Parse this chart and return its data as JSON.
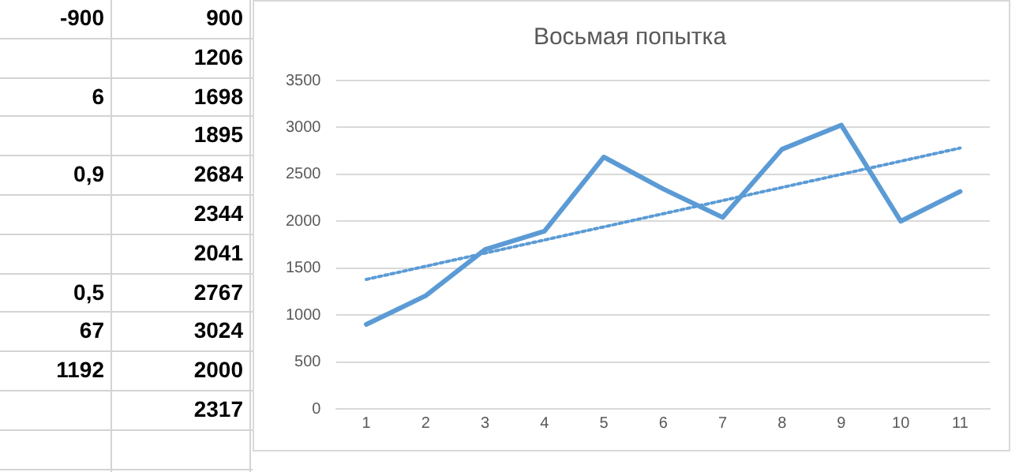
{
  "chart_data": [
    {
      "type": "other",
      "annotations": [
        "-900",
        "900",
        "1206",
        "6",
        "1698",
        "1895",
        "0,9",
        "2684",
        "2344",
        "2041",
        "0,5",
        "2767",
        "67",
        "3024",
        "1192",
        "2000",
        "2317"
      ]
    },
    {
      "type": "line",
      "title": "Восьмая попытка",
      "categories": [
        "1",
        "2",
        "3",
        "4",
        "5",
        "6",
        "7",
        "8",
        "9",
        "10",
        "11"
      ],
      "series": [
        {
          "values": [
            900,
            1206,
            1698,
            1895,
            2684,
            2344,
            2041,
            2767,
            3024,
            2000,
            2317
          ],
          "color": "#5b9bd5",
          "line_style": "solid"
        },
        {
          "type": "line",
          "values": [
            1380,
            null,
            null,
            null,
            null,
            null,
            null,
            null,
            null,
            null,
            2780
          ],
          "color": "#5b9bd5",
          "line_style": "dotted"
        }
      ],
      "ylim": [
        0,
        3500
      ],
      "yticks": [
        0,
        500,
        1000,
        1500,
        2000,
        2500,
        3000,
        3500
      ],
      "grid": "y",
      "legend": false,
      "marker": "none"
    }
  ]
}
